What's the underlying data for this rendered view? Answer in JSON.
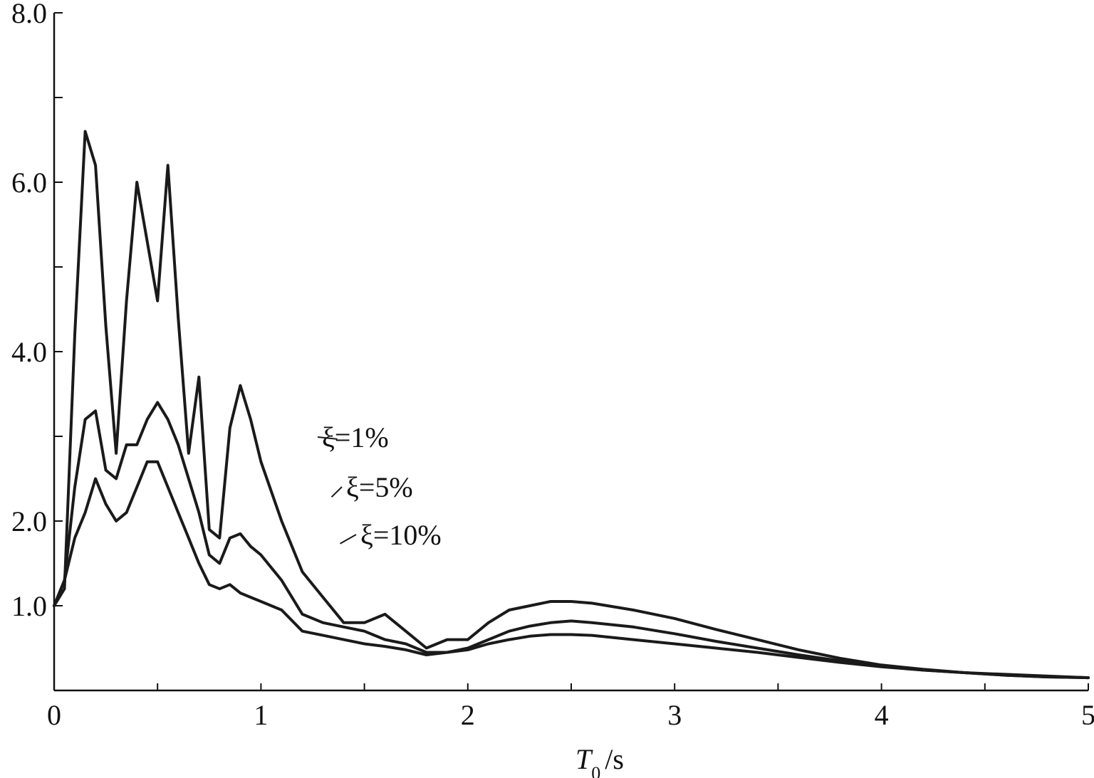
{
  "chart_data": {
    "type": "line",
    "title": "",
    "xlabel": "T0/s",
    "ylabel": "",
    "xlim": [
      0,
      5
    ],
    "ylim": [
      0,
      8.0
    ],
    "grid": false,
    "x_ticks": [
      0,
      0.5,
      1,
      1.5,
      2,
      2.5,
      3,
      3.5,
      4,
      4.5,
      5
    ],
    "x_tick_labels": [
      {
        "value": 0,
        "label": "0"
      },
      {
        "value": 1,
        "label": "1"
      },
      {
        "value": 2,
        "label": "2"
      },
      {
        "value": 3,
        "label": "3"
      },
      {
        "value": 4,
        "label": "4"
      },
      {
        "value": 5,
        "label": "5"
      }
    ],
    "y_ticks": [
      1.0,
      2.0,
      3.0,
      4.0,
      5.0,
      6.0,
      7.0,
      8.0
    ],
    "y_tick_labels": [
      {
        "value": 1.0,
        "label": "1.0"
      },
      {
        "value": 2.0,
        "label": "2.0"
      },
      {
        "value": 4.0,
        "label": "4.0"
      },
      {
        "value": 6.0,
        "label": "6.0"
      },
      {
        "value": 8.0,
        "label": "8.0"
      }
    ],
    "series": [
      {
        "name": "ξ=1%",
        "label_anchor": [
          1.3,
          2.9
        ],
        "x": [
          0,
          0.05,
          0.1,
          0.15,
          0.2,
          0.25,
          0.3,
          0.35,
          0.4,
          0.45,
          0.5,
          0.55,
          0.6,
          0.65,
          0.7,
          0.75,
          0.8,
          0.85,
          0.9,
          0.95,
          1.0,
          1.1,
          1.2,
          1.3,
          1.4,
          1.5,
          1.6,
          1.7,
          1.8,
          1.9,
          2.0,
          2.1,
          2.2,
          2.3,
          2.4,
          2.5,
          2.6,
          2.8,
          3.0,
          3.2,
          3.4,
          3.6,
          3.8,
          4.0,
          4.2,
          4.4,
          4.6,
          4.8,
          5.0
        ],
        "y": [
          1.0,
          1.2,
          4.2,
          6.6,
          6.2,
          4.3,
          2.8,
          4.6,
          6.0,
          5.3,
          4.6,
          6.2,
          4.4,
          2.8,
          3.7,
          1.9,
          1.8,
          3.1,
          3.6,
          3.2,
          2.7,
          2.0,
          1.4,
          1.1,
          0.8,
          0.8,
          0.9,
          0.7,
          0.5,
          0.6,
          0.6,
          0.8,
          0.95,
          1.0,
          1.05,
          1.05,
          1.03,
          0.95,
          0.85,
          0.72,
          0.6,
          0.48,
          0.38,
          0.3,
          0.25,
          0.21,
          0.19,
          0.17,
          0.15
        ]
      },
      {
        "name": "ξ=5%",
        "label_anchor": [
          1.3,
          2.35
        ],
        "x": [
          0,
          0.05,
          0.1,
          0.15,
          0.2,
          0.25,
          0.3,
          0.35,
          0.4,
          0.45,
          0.5,
          0.55,
          0.6,
          0.65,
          0.7,
          0.75,
          0.8,
          0.85,
          0.9,
          0.95,
          1.0,
          1.1,
          1.2,
          1.3,
          1.4,
          1.5,
          1.6,
          1.7,
          1.8,
          1.9,
          2.0,
          2.1,
          2.2,
          2.3,
          2.4,
          2.5,
          2.6,
          2.8,
          3.0,
          3.2,
          3.4,
          3.6,
          3.8,
          4.0,
          4.2,
          4.4,
          4.6,
          4.8,
          5.0
        ],
        "y": [
          1.0,
          1.3,
          2.4,
          3.2,
          3.3,
          2.6,
          2.5,
          2.9,
          2.9,
          3.2,
          3.4,
          3.2,
          2.9,
          2.5,
          2.1,
          1.6,
          1.5,
          1.8,
          1.85,
          1.7,
          1.6,
          1.3,
          0.9,
          0.8,
          0.75,
          0.7,
          0.6,
          0.55,
          0.45,
          0.45,
          0.5,
          0.6,
          0.7,
          0.76,
          0.8,
          0.82,
          0.8,
          0.75,
          0.67,
          0.58,
          0.5,
          0.42,
          0.35,
          0.29,
          0.24,
          0.21,
          0.18,
          0.16,
          0.15
        ]
      },
      {
        "name": "ξ=10%",
        "label_anchor": [
          1.3,
          1.8
        ],
        "x": [
          0,
          0.05,
          0.1,
          0.15,
          0.2,
          0.25,
          0.3,
          0.35,
          0.4,
          0.45,
          0.5,
          0.55,
          0.6,
          0.65,
          0.7,
          0.75,
          0.8,
          0.85,
          0.9,
          0.95,
          1.0,
          1.1,
          1.2,
          1.3,
          1.4,
          1.5,
          1.6,
          1.7,
          1.8,
          1.9,
          2.0,
          2.1,
          2.2,
          2.3,
          2.4,
          2.5,
          2.6,
          2.8,
          3.0,
          3.2,
          3.4,
          3.6,
          3.8,
          4.0,
          4.2,
          4.4,
          4.6,
          4.8,
          5.0
        ],
        "y": [
          1.0,
          1.3,
          1.8,
          2.1,
          2.5,
          2.2,
          2.0,
          2.1,
          2.4,
          2.7,
          2.7,
          2.4,
          2.1,
          1.8,
          1.5,
          1.25,
          1.2,
          1.25,
          1.15,
          1.1,
          1.05,
          0.95,
          0.7,
          0.65,
          0.6,
          0.55,
          0.52,
          0.48,
          0.42,
          0.45,
          0.48,
          0.55,
          0.6,
          0.64,
          0.66,
          0.66,
          0.65,
          0.6,
          0.55,
          0.5,
          0.45,
          0.39,
          0.33,
          0.28,
          0.24,
          0.21,
          0.18,
          0.16,
          0.15
        ]
      }
    ]
  },
  "axis": {
    "x_label_main": "T",
    "x_label_sub": "0",
    "x_label_unit": "/s"
  }
}
